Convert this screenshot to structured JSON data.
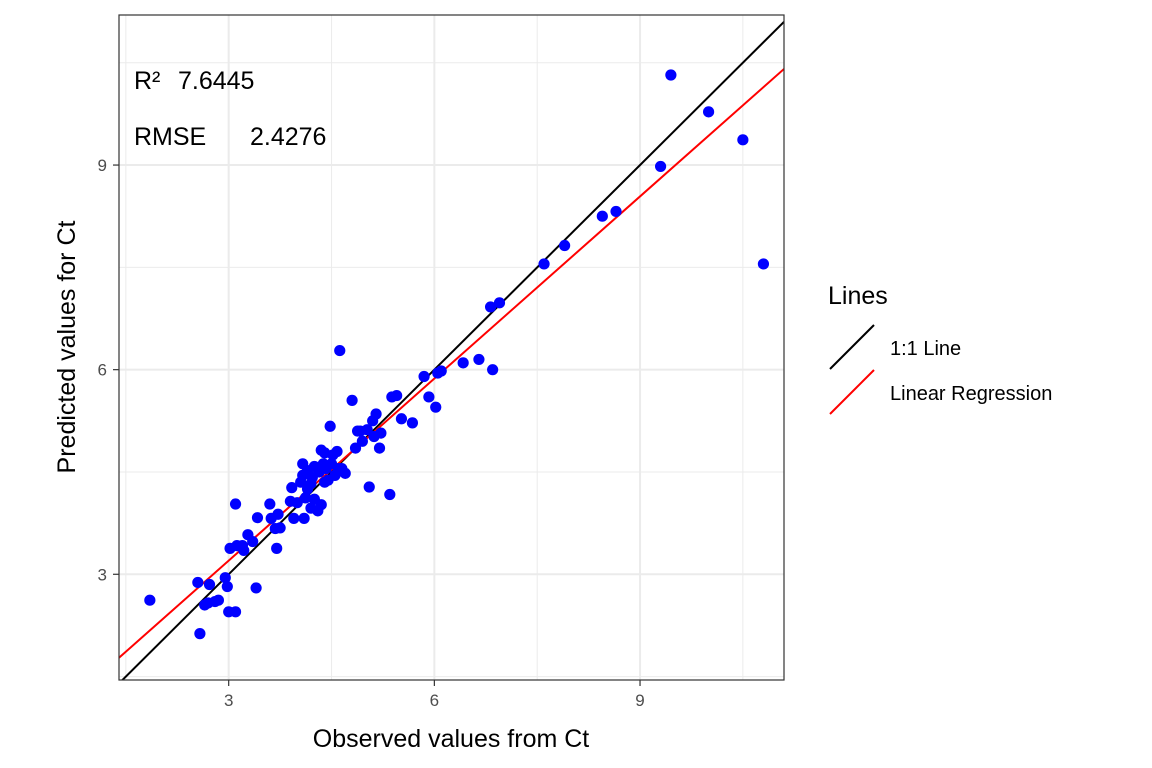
{
  "chart_data": {
    "type": "scatter",
    "xlabel": "Observed values from Ct",
    "ylabel": "Predicted values for Ct",
    "xlim": [
      1.4,
      11.1
    ],
    "ylim": [
      1.45,
      11.2
    ],
    "xticks": [
      3,
      6,
      9
    ],
    "yticks": [
      3,
      6,
      9
    ],
    "xtick_labels": [
      "3",
      "6",
      "9"
    ],
    "ytick_labels": [
      "3",
      "6",
      "9"
    ],
    "grid": true,
    "legend": {
      "title": "Lines",
      "placement": "right",
      "entries": [
        {
          "label": "1:1 Line",
          "color": "#000000"
        },
        {
          "label": "Linear Regression",
          "color": "#ff0000"
        }
      ]
    },
    "annotations": {
      "r2_label": "R²",
      "r2_value": "7.6445",
      "rmse_label": "RMSE",
      "rmse_value": "2.4276"
    },
    "point_color": "#0000ff",
    "lines": [
      {
        "name": "1:1 Line",
        "slope": 1,
        "intercept": 0,
        "color": "#000000"
      },
      {
        "name": "Linear Regression",
        "slope": 0.89,
        "intercept": 0.53,
        "color": "#ff0000"
      }
    ],
    "points": [
      [
        1.85,
        2.62
      ],
      [
        2.55,
        2.88
      ],
      [
        2.58,
        2.13
      ],
      [
        2.65,
        2.55
      ],
      [
        2.7,
        2.58
      ],
      [
        2.72,
        2.85
      ],
      [
        2.8,
        2.6
      ],
      [
        2.85,
        2.62
      ],
      [
        2.95,
        2.95
      ],
      [
        2.98,
        2.82
      ],
      [
        3.0,
        2.45
      ],
      [
        3.02,
        3.38
      ],
      [
        3.1,
        2.45
      ],
      [
        3.1,
        4.03
      ],
      [
        3.12,
        3.42
      ],
      [
        3.2,
        3.42
      ],
      [
        3.22,
        3.35
      ],
      [
        3.28,
        3.58
      ],
      [
        3.35,
        3.48
      ],
      [
        3.4,
        2.8
      ],
      [
        3.42,
        3.83
      ],
      [
        3.6,
        4.03
      ],
      [
        3.62,
        3.82
      ],
      [
        3.68,
        3.67
      ],
      [
        3.7,
        3.38
      ],
      [
        3.72,
        3.88
      ],
      [
        3.75,
        3.68
      ],
      [
        3.9,
        4.07
      ],
      [
        3.92,
        4.27
      ],
      [
        3.95,
        3.82
      ],
      [
        4.0,
        4.05
      ],
      [
        4.05,
        4.35
      ],
      [
        4.08,
        4.45
      ],
      [
        4.08,
        4.62
      ],
      [
        4.1,
        3.82
      ],
      [
        4.12,
        4.12
      ],
      [
        4.15,
        4.25
      ],
      [
        4.15,
        4.52
      ],
      [
        4.2,
        3.97
      ],
      [
        4.2,
        4.33
      ],
      [
        4.22,
        4.42
      ],
      [
        4.25,
        4.1
      ],
      [
        4.25,
        4.58
      ],
      [
        4.3,
        3.93
      ],
      [
        4.32,
        4.5
      ],
      [
        4.35,
        4.02
      ],
      [
        4.35,
        4.82
      ],
      [
        4.38,
        4.62
      ],
      [
        4.4,
        4.35
      ],
      [
        4.4,
        4.78
      ],
      [
        4.42,
        4.55
      ],
      [
        4.45,
        4.38
      ],
      [
        4.48,
        5.17
      ],
      [
        4.5,
        4.62
      ],
      [
        4.52,
        4.75
      ],
      [
        4.55,
        4.45
      ],
      [
        4.58,
        4.8
      ],
      [
        4.6,
        4.55
      ],
      [
        4.62,
        6.28
      ],
      [
        4.65,
        4.55
      ],
      [
        4.7,
        4.48
      ],
      [
        4.8,
        5.55
      ],
      [
        4.85,
        4.85
      ],
      [
        4.88,
        5.1
      ],
      [
        4.92,
        5.1
      ],
      [
        4.95,
        4.95
      ],
      [
        5.02,
        5.12
      ],
      [
        5.05,
        4.28
      ],
      [
        5.1,
        5.25
      ],
      [
        5.12,
        5.02
      ],
      [
        5.15,
        5.35
      ],
      [
        5.2,
        4.85
      ],
      [
        5.22,
        5.07
      ],
      [
        5.35,
        4.17
      ],
      [
        5.38,
        5.6
      ],
      [
        5.45,
        5.62
      ],
      [
        5.52,
        5.28
      ],
      [
        5.68,
        5.22
      ],
      [
        5.85,
        5.9
      ],
      [
        5.92,
        5.6
      ],
      [
        6.02,
        5.45
      ],
      [
        6.05,
        5.95
      ],
      [
        6.1,
        5.98
      ],
      [
        6.42,
        6.1
      ],
      [
        6.65,
        6.15
      ],
      [
        6.82,
        6.92
      ],
      [
        6.85,
        6.0
      ],
      [
        6.95,
        6.98
      ],
      [
        7.6,
        7.55
      ],
      [
        7.9,
        7.82
      ],
      [
        8.45,
        8.25
      ],
      [
        8.65,
        8.32
      ],
      [
        9.3,
        8.98
      ],
      [
        9.45,
        10.32
      ],
      [
        10.0,
        9.78
      ],
      [
        10.5,
        9.37
      ],
      [
        10.8,
        7.55
      ]
    ]
  }
}
